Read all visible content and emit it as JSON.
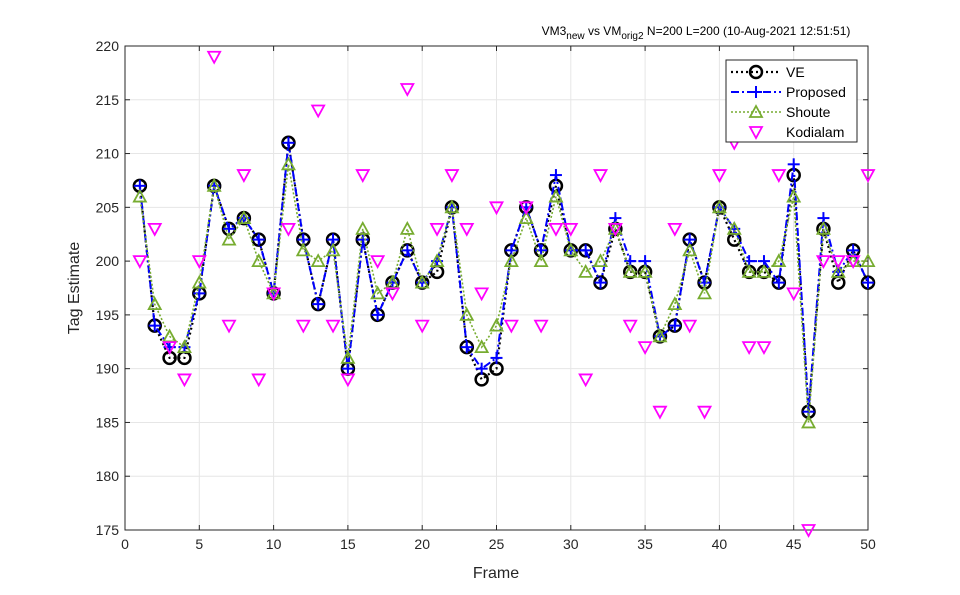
{
  "chart_data": {
    "type": "line",
    "title_main": "VM3",
    "title_sub1": "new",
    "title_mid": " vs VM",
    "title_sub2": "orig2",
    "title_rest": " N=200 L=200 (10-Aug-2021 12:51:51)",
    "xlabel": "Frame",
    "ylabel": "Tag Estimate",
    "xlim": [
      0,
      50
    ],
    "ylim": [
      175,
      220
    ],
    "xticks": [
      0,
      5,
      10,
      15,
      20,
      25,
      30,
      35,
      40,
      45,
      50
    ],
    "yticks": [
      175,
      180,
      185,
      190,
      195,
      200,
      205,
      210,
      215,
      220
    ],
    "grid": true,
    "legend_position": "top-right",
    "x": [
      1,
      2,
      3,
      4,
      5,
      6,
      7,
      8,
      9,
      10,
      11,
      12,
      13,
      14,
      15,
      16,
      17,
      18,
      19,
      20,
      21,
      22,
      23,
      24,
      25,
      26,
      27,
      28,
      29,
      30,
      31,
      32,
      33,
      34,
      35,
      36,
      37,
      38,
      39,
      40,
      41,
      42,
      43,
      44,
      45,
      46,
      47,
      48,
      49,
      50
    ],
    "series": [
      {
        "name": "VE",
        "color": "#000000",
        "values": [
          207,
          194,
          191,
          191,
          197,
          207,
          203,
          204,
          202,
          197,
          211,
          202,
          196,
          202,
          190,
          202,
          195,
          198,
          201,
          198,
          199,
          205,
          192,
          189,
          190,
          201,
          205,
          201,
          207,
          201,
          201,
          198,
          203,
          199,
          199,
          193,
          194,
          202,
          198,
          205,
          202,
          199,
          199,
          198,
          208,
          186,
          203,
          198,
          201,
          198
        ]
      },
      {
        "name": "Proposed",
        "color": "#0000ff",
        "values": [
          207,
          194,
          192,
          192,
          197,
          207,
          203,
          204,
          202,
          197,
          211,
          202,
          196,
          202,
          190,
          202,
          195,
          198,
          201,
          198,
          200,
          205,
          192,
          190,
          191,
          201,
          205,
          201,
          208,
          201,
          201,
          198,
          204,
          200,
          200,
          193,
          194,
          202,
          198,
          205,
          203,
          200,
          200,
          198,
          209,
          186,
          204,
          199,
          201,
          198
        ]
      },
      {
        "name": "Shoute",
        "color": "#77ac30",
        "values": [
          206,
          196,
          193,
          192,
          198,
          207,
          202,
          204,
          200,
          197,
          209,
          201,
          200,
          201,
          191,
          203,
          197,
          198,
          203,
          198,
          200,
          205,
          195,
          192,
          194,
          200,
          204,
          200,
          206,
          201,
          199,
          200,
          203,
          199,
          199,
          193,
          196,
          201,
          197,
          205,
          203,
          199,
          199,
          200,
          206,
          185,
          203,
          199,
          200,
          200
        ]
      },
      {
        "name": "Kodialam",
        "color": "#ff00ff",
        "values": [
          200,
          203,
          192,
          189,
          200,
          219,
          194,
          208,
          189,
          197,
          203,
          194,
          214,
          194,
          189,
          208,
          200,
          197,
          216,
          194,
          203,
          208,
          203,
          197,
          205,
          194,
          205,
          194,
          203,
          203,
          189,
          208,
          203,
          194,
          192,
          186,
          203,
          194,
          186,
          208,
          211,
          192,
          192,
          208,
          197,
          175,
          200,
          200,
          200,
          208
        ]
      }
    ]
  }
}
